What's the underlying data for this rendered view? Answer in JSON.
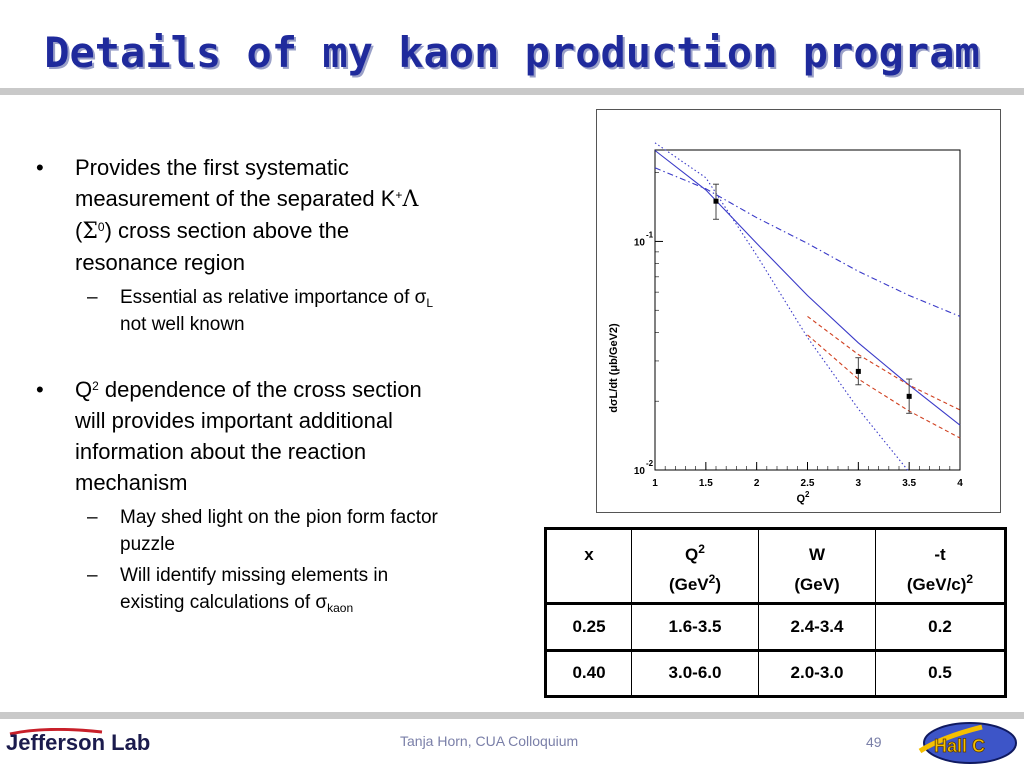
{
  "title": "Details of my kaon production program",
  "bullets": [
    {
      "text_a": "Provides the first systematic",
      "text_b": "measurement of the separated K",
      "sup_plus": "+",
      "lambda": "Λ",
      "text_c": "(",
      "sigma": "Σ",
      "sup_zero": "0",
      "text_d": ") cross section above the",
      "text_e": "resonance region",
      "sub": {
        "text_a": "Essential as relative importance of σ",
        "sub_L": "L",
        "text_b": "not well known"
      }
    },
    {
      "text_a": "Q",
      "sup_two": "2",
      "text_b": " dependence of the cross section",
      "text_c": "will provides important additional",
      "text_d": "information about the reaction",
      "text_e": "mechanism",
      "subs": [
        {
          "text_a": "May shed light on the pion form factor",
          "text_b": "puzzle"
        },
        {
          "text_a": "Will identify missing elements in",
          "text_b": "existing calculations of σ",
          "sub_kaon": "kaon"
        }
      ]
    }
  ],
  "chart_data": {
    "type": "line",
    "xlabel_main": "Q",
    "xlabel_sup": "2",
    "ylabel": "dσL/dt (μb/GeV2)",
    "xlim": [
      1,
      4
    ],
    "ylim_log10": [
      -2,
      -0.6
    ],
    "x_ticks": [
      "1",
      "1.5",
      "2",
      "2.5",
      "3",
      "3.5",
      "4"
    ],
    "y_tick_exponents": [
      "-1",
      "-2"
    ],
    "y_tick_base": "10",
    "log_y": true,
    "points": [
      {
        "x": 1.6,
        "y": 0.15,
        "err_low": 0.125,
        "err_high": 0.178
      },
      {
        "x": 3.0,
        "y": 0.027,
        "err_low": 0.0236,
        "err_high": 0.031
      },
      {
        "x": 3.5,
        "y": 0.021,
        "err_low": 0.0177,
        "err_high": 0.025
      }
    ],
    "series": [
      {
        "style": "solid",
        "color": "#3a3ac8",
        "x": [
          1.0,
          1.5,
          2.0,
          2.5,
          3.0,
          3.5,
          4.0
        ],
        "y": [
          0.25,
          0.168,
          0.098,
          0.058,
          0.036,
          0.0235,
          0.0157
        ]
      },
      {
        "style": "dotted",
        "color": "#3a3ac8",
        "x": [
          1.0,
          1.5,
          2.0,
          2.5,
          3.0,
          3.5
        ],
        "y": [
          0.27,
          0.19,
          0.087,
          0.038,
          0.0185,
          0.0098
        ]
      },
      {
        "style": "dashdot",
        "color": "#3a3ac8",
        "x": [
          1.0,
          1.5,
          2.0,
          2.5,
          3.0,
          3.5,
          4.0
        ],
        "y": [
          0.21,
          0.17,
          0.127,
          0.098,
          0.074,
          0.058,
          0.047
        ]
      },
      {
        "style": "dashed",
        "color": "#d04020",
        "x": [
          2.5,
          3.0,
          3.5,
          4.0
        ],
        "y": [
          0.047,
          0.032,
          0.0235,
          0.0183
        ]
      },
      {
        "style": "dashed",
        "color": "#d04020",
        "x": [
          2.5,
          3.0,
          3.5,
          4.0
        ],
        "y": [
          0.039,
          0.025,
          0.0181,
          0.0138
        ]
      }
    ]
  },
  "table": {
    "headers": [
      {
        "line1": "x",
        "line2": ""
      },
      {
        "line1": "Q",
        "line1_sup": "2",
        "line2": "(GeV",
        "line2_sup": "2",
        "line2_end": ")"
      },
      {
        "line1": "W",
        "line2": "(GeV)"
      },
      {
        "line1": "-t",
        "line2": "(GeV/c)",
        "line2_sup": "2",
        "line2_end": ""
      }
    ],
    "rows": [
      [
        "0.25",
        "1.6-3.5",
        "2.4-3.4",
        "0.2"
      ],
      [
        "0.40",
        "3.0-6.0",
        "2.0-3.0",
        "0.5"
      ]
    ]
  },
  "footer": {
    "logo_text": "Jefferson Lab",
    "presenter": "Tanja Horn, CUA Colloquium",
    "page": "49",
    "hall_logo_text": "Hall C"
  }
}
